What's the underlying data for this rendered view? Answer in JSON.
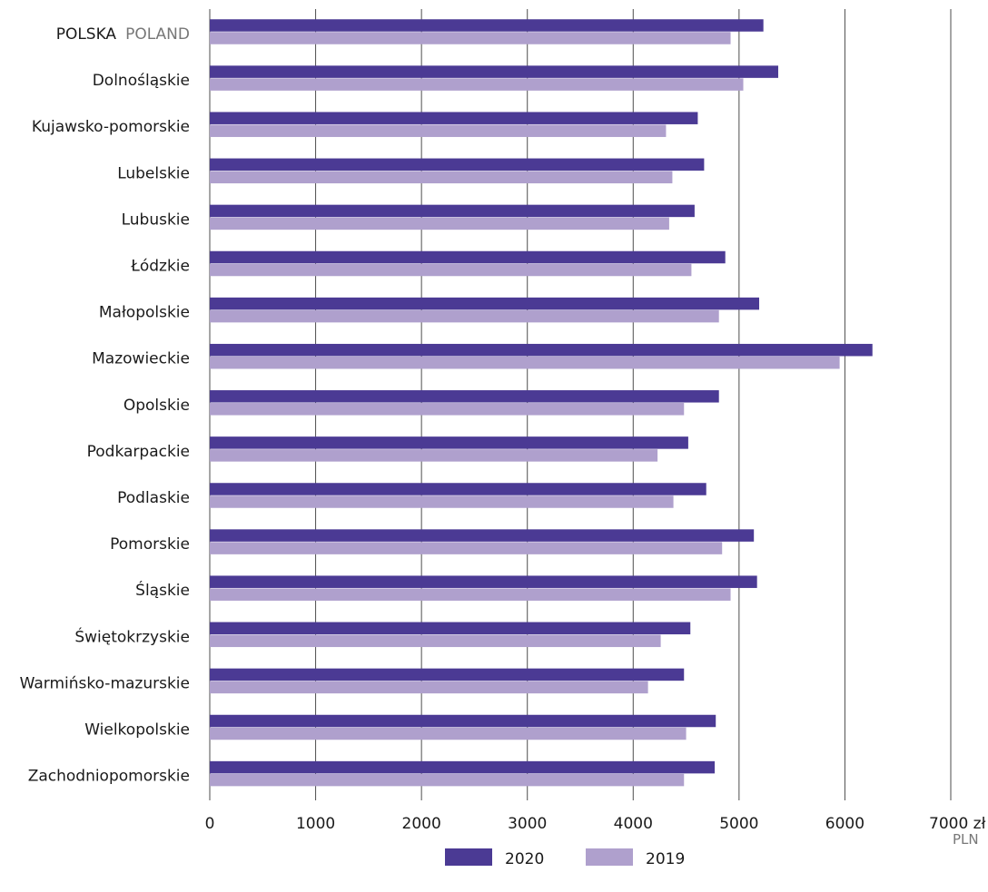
{
  "chart_data": {
    "type": "bar",
    "orientation": "horizontal",
    "categories": [
      "POLSKA",
      "Dolnośląskie",
      "Kujawsko-pomorskie",
      "Lubelskie",
      "Lubuskie",
      "Łódzkie",
      "Małopolskie",
      "Mazowieckie",
      "Opolskie",
      "Podkarpackie",
      "Podlaskie",
      "Pomorskie",
      "Śląskie",
      "Świętokrzyskie",
      "Warmińsko-mazurskie",
      "Wielkopolskie",
      "Zachodniopomorskie"
    ],
    "first_category_secondary_label": "POLAND",
    "series": [
      {
        "name": "2020",
        "color": "#4b3a94",
        "values": [
          5230,
          5370,
          4610,
          4670,
          4580,
          4870,
          5190,
          6260,
          4810,
          4520,
          4690,
          5140,
          5170,
          4540,
          4480,
          4780,
          4770
        ]
      },
      {
        "name": "2019",
        "color": "#afa0cd",
        "values": [
          4920,
          5040,
          4310,
          4370,
          4340,
          4550,
          4810,
          5950,
          4480,
          4230,
          4380,
          4840,
          4920,
          4260,
          4140,
          4500,
          4480
        ]
      }
    ],
    "x_ticks": [
      "0",
      "1000",
      "2000",
      "3000",
      "4000",
      "5000",
      "6000",
      "7000 zł"
    ],
    "xlim": [
      0,
      7000
    ],
    "x_unit_secondary": "PLN",
    "grid": "vertical",
    "legend_position": "bottom-center"
  }
}
